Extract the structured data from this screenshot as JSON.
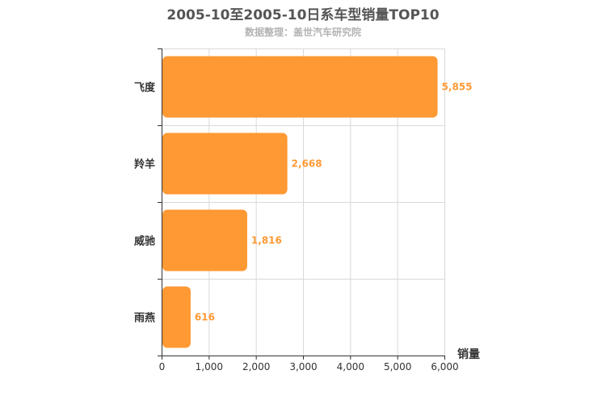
{
  "chart_data": {
    "type": "bar",
    "orientation": "horizontal",
    "title": "2005-10至2005-10日系车型销量TOP10",
    "subtitle": "数据整理：盖世汽车研究院",
    "categories": [
      "飞度",
      "羚羊",
      "威驰",
      "雨燕"
    ],
    "values": [
      5855,
      2668,
      1816,
      616
    ],
    "data_labels": [
      "5,855",
      "2,668",
      "1,816",
      "616"
    ],
    "xlabel": "销量",
    "ylabel": "",
    "xlim": [
      0,
      6000
    ],
    "xticks": [
      0,
      1000,
      2000,
      3000,
      4000,
      5000,
      6000
    ],
    "xtick_labels": [
      "0",
      "1,000",
      "2,000",
      "3,000",
      "4,000",
      "5,000",
      "6,000"
    ],
    "grid": true,
    "bar_color": "#ff9933",
    "label_color": "#ff9933"
  }
}
